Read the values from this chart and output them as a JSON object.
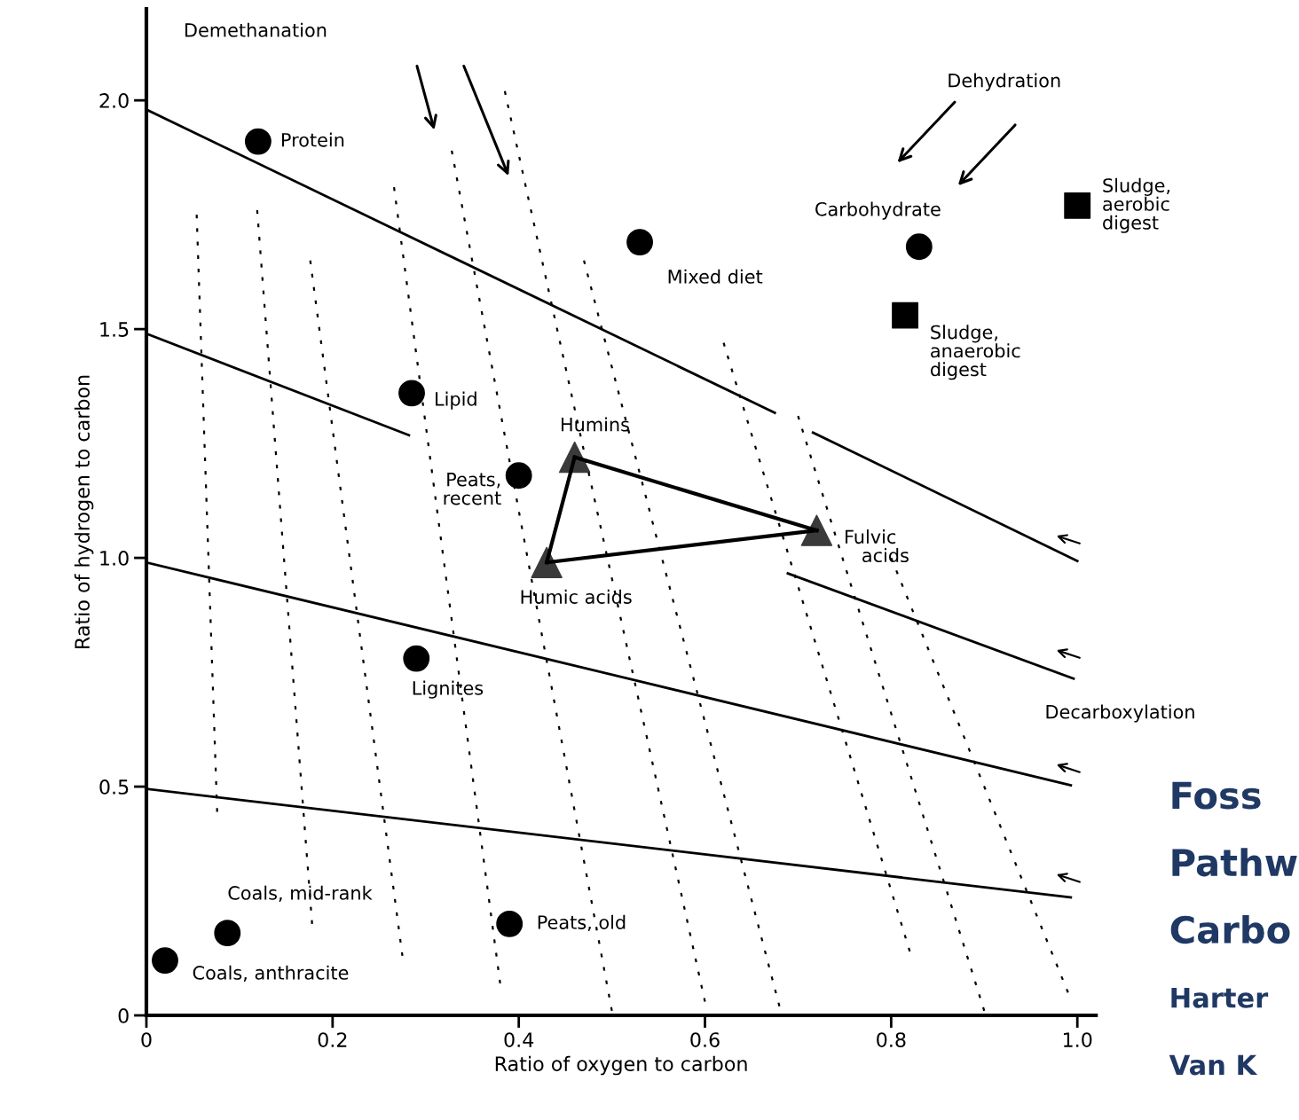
{
  "chart_data": {
    "type": "scatter",
    "xlabel": "Ratio of oxygen to carbon",
    "ylabel": "Ratio of hydrogen to carbon",
    "xlim": [
      0,
      1.02
    ],
    "ylim": [
      0,
      2.2
    ],
    "xticks": [
      0,
      0.2,
      0.4,
      0.6,
      0.8,
      {
        "value": 1.0,
        "label": "1.0"
      }
    ],
    "yticks": [
      0,
      0.5,
      {
        "value": 1.0,
        "label": "1.0"
      },
      1.5,
      {
        "value": 2.0,
        "label": "2.0"
      }
    ],
    "grid": false,
    "legend": false,
    "annotations": [
      "Demethanation",
      "Dehydration",
      "Decarboxylation",
      "Foss",
      "Pathw",
      "Carbo",
      "Harter",
      "Van K"
    ],
    "series": [
      {
        "type": "scatter",
        "marker": "circle",
        "color": "#000000",
        "x": [
          0.12,
          0.53,
          0.83,
          0.285,
          0.4,
          0.29,
          0.087,
          0.02,
          0.39
        ],
        "values": [
          1.91,
          1.69,
          1.68,
          1.36,
          1.18,
          0.78,
          0.18,
          0.12,
          0.2
        ],
        "value_labels": [
          "Protein",
          "Mixed diet",
          "Carbohydrate",
          "Lipid",
          "Peats,\nrecent",
          "Lignites",
          "Coals, mid-rank",
          "Coals, anthracite",
          "Peats, old"
        ]
      },
      {
        "type": "scatter",
        "marker": "square",
        "color": "#000000",
        "x": [
          1.0,
          0.815
        ],
        "values": [
          1.77,
          1.53
        ],
        "value_labels": [
          "Sludge,\naerobic\ndigest",
          "Sludge,\nanaerobic\ndigest"
        ]
      },
      {
        "type": "scatter",
        "marker": "triangle",
        "color": "#3a3a3a",
        "x": [
          0.43,
          0.46,
          0.72
        ],
        "values": [
          0.99,
          1.22,
          1.06
        ],
        "value_labels": [
          "Humic acids",
          "Humins",
          "Fulvic\n   acids"
        ]
      },
      {
        "type": "line",
        "line_style": "solid",
        "color": "#000000",
        "x": [
          0.43,
          0.46
        ],
        "values": [
          0.99,
          1.22
        ]
      },
      {
        "type": "line",
        "line_style": "solid",
        "color": "#000000",
        "x": [
          0.46,
          0.72
        ],
        "values": [
          1.22,
          1.06
        ]
      },
      {
        "type": "line",
        "line_style": "solid",
        "color": "#000000",
        "x": [
          0.43,
          0.72
        ],
        "values": [
          0.99,
          1.06
        ]
      },
      {
        "type": "line",
        "line_style": "solid",
        "color": "#000000",
        "x": [
          0,
          0.675,
          null,
          0.716,
          1.0
        ],
        "values": [
          1.98,
          1.317,
          null,
          1.274,
          0.993
        ]
      },
      {
        "type": "line",
        "line_style": "solid",
        "color": "#000000",
        "x": [
          0,
          0.282,
          null,
          0.689,
          0.996
        ],
        "values": [
          1.49,
          1.268,
          null,
          0.966,
          0.736
        ]
      },
      {
        "type": "line",
        "line_style": "solid",
        "color": "#000000",
        "x": [
          0,
          0.993
        ],
        "values": [
          0.99,
          0.503
        ]
      },
      {
        "type": "line",
        "line_style": "solid",
        "color": "#000000",
        "x": [
          0,
          0.993
        ],
        "values": [
          0.495,
          0.258
        ]
      },
      {
        "type": "line",
        "line_style": "dashed",
        "color": "#000000",
        "x": [
          0.054,
          0.076
        ],
        "values": [
          1.75,
          0.445
        ]
      },
      {
        "type": "line",
        "line_style": "dashed",
        "color": "#000000",
        "x": [
          0.119,
          0.178
        ],
        "values": [
          1.76,
          0.2
        ]
      },
      {
        "type": "line",
        "line_style": "dashed",
        "color": "#000000",
        "x": [
          0.176,
          0.275
        ],
        "values": [
          1.65,
          0.13
        ]
      },
      {
        "type": "line",
        "line_style": "dashed",
        "color": "#000000",
        "x": [
          0.266,
          0.38
        ],
        "values": [
          1.81,
          0.07
        ]
      },
      {
        "type": "line",
        "line_style": "dashed",
        "color": "#000000",
        "x": [
          0.328,
          0.5
        ],
        "values": [
          1.89,
          0.01
        ]
      },
      {
        "type": "line",
        "line_style": "dashed",
        "color": "#000000",
        "x": [
          0.385,
          0.6
        ],
        "values": [
          2.02,
          0.03
        ]
      },
      {
        "type": "line",
        "line_style": "dashed",
        "color": "#000000",
        "x": [
          0.47,
          0.68
        ],
        "values": [
          1.65,
          0.02
        ]
      },
      {
        "type": "line",
        "line_style": "dashed",
        "color": "#000000",
        "x": [
          0.62,
          0.82
        ],
        "values": [
          1.47,
          0.14
        ]
      },
      {
        "type": "line",
        "line_style": "dashed",
        "color": "#000000",
        "x": [
          0.7,
          0.9
        ],
        "values": [
          1.31,
          0.01
        ]
      },
      {
        "type": "line",
        "line_style": "dashed",
        "color": "#000000",
        "x": [
          0.8,
          0.99
        ],
        "values": [
          1.0,
          0.05
        ]
      }
    ]
  }
}
